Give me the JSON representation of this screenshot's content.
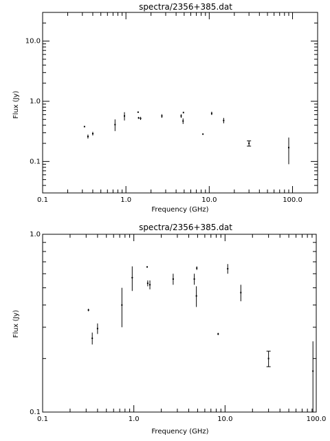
{
  "chart_data": [
    {
      "type": "scatter",
      "title": "spectra/2356+385.dat",
      "xlabel": "Frequency (GHz)",
      "ylabel": "Flux (Jy)",
      "xscale": "log",
      "yscale": "log",
      "xlim": [
        0.1,
        200
      ],
      "ylim": [
        0.03,
        30
      ],
      "xticks": [
        {
          "v": 0.1,
          "label": "0.1"
        },
        {
          "v": 1,
          "label": "1.0"
        },
        {
          "v": 10,
          "label": "10.0"
        },
        {
          "v": 100,
          "label": "100.0"
        }
      ],
      "yticks": [
        {
          "v": 0.1,
          "label": "0.1"
        },
        {
          "v": 1,
          "label": "1.0"
        },
        {
          "v": 10,
          "label": "10.0"
        }
      ],
      "grid": false,
      "points": [
        {
          "x": 0.318,
          "y": 0.38,
          "err": 0.006
        },
        {
          "x": 0.35,
          "y": 0.26,
          "err": 0.02
        },
        {
          "x": 0.4,
          "y": 0.29,
          "err": 0.02
        },
        {
          "x": 0.74,
          "y": 0.41,
          "err": 0.09
        },
        {
          "x": 0.96,
          "y": 0.57,
          "err": 0.09
        },
        {
          "x": 1.4,
          "y": 0.66,
          "err": 0.006
        },
        {
          "x": 1.42,
          "y": 0.53,
          "err": 0.02
        },
        {
          "x": 1.5,
          "y": 0.52,
          "err": 0.03
        },
        {
          "x": 2.7,
          "y": 0.57,
          "err": 0.04
        },
        {
          "x": 4.6,
          "y": 0.57,
          "err": 0.04
        },
        {
          "x": 4.9,
          "y": 0.65,
          "err": 0.015
        },
        {
          "x": 4.85,
          "y": 0.47,
          "err": 0.05
        },
        {
          "x": 8.4,
          "y": 0.285,
          "err": 0.004
        },
        {
          "x": 10.7,
          "y": 0.63,
          "err": 0.04
        },
        {
          "x": 14.9,
          "y": 0.48,
          "err": 0.05
        },
        {
          "x": 30,
          "y": 0.2,
          "err": 0.02
        },
        {
          "x": 90,
          "y": 0.17,
          "err": 0.08
        }
      ]
    },
    {
      "type": "scatter",
      "title": "spectra/2356+385.dat",
      "xlabel": "Frequency (GHz)",
      "ylabel": "Flux (Jy)",
      "xscale": "log",
      "yscale": "log",
      "xlim": [
        0.1,
        100
      ],
      "ylim": [
        0.1,
        1
      ],
      "xticks": [
        {
          "v": 0.1,
          "label": "0.1"
        },
        {
          "v": 1,
          "label": "1.0"
        },
        {
          "v": 10,
          "label": "10.0"
        },
        {
          "v": 100,
          "label": "100.0"
        }
      ],
      "yticks": [
        {
          "v": 0.1,
          "label": "0.1"
        },
        {
          "v": 1,
          "label": "1.0"
        }
      ],
      "grid": false,
      "points": [
        {
          "x": 0.318,
          "y": 0.375,
          "err": 0.006
        },
        {
          "x": 0.35,
          "y": 0.26,
          "err": 0.02
        },
        {
          "x": 0.4,
          "y": 0.295,
          "err": 0.02
        },
        {
          "x": 0.74,
          "y": 0.4,
          "err": 0.1
        },
        {
          "x": 0.96,
          "y": 0.57,
          "err": 0.09
        },
        {
          "x": 1.4,
          "y": 0.655,
          "err": 0.006
        },
        {
          "x": 1.42,
          "y": 0.53,
          "err": 0.02
        },
        {
          "x": 1.5,
          "y": 0.52,
          "err": 0.03
        },
        {
          "x": 2.7,
          "y": 0.56,
          "err": 0.04
        },
        {
          "x": 4.6,
          "y": 0.56,
          "err": 0.04
        },
        {
          "x": 4.9,
          "y": 0.645,
          "err": 0.015
        },
        {
          "x": 4.85,
          "y": 0.45,
          "err": 0.06
        },
        {
          "x": 8.4,
          "y": 0.275,
          "err": 0.004
        },
        {
          "x": 10.7,
          "y": 0.64,
          "err": 0.04
        },
        {
          "x": 14.9,
          "y": 0.47,
          "err": 0.05
        },
        {
          "x": 30,
          "y": 0.2,
          "err": 0.02
        },
        {
          "x": 92,
          "y": 0.17,
          "err": 0.08
        }
      ]
    }
  ]
}
